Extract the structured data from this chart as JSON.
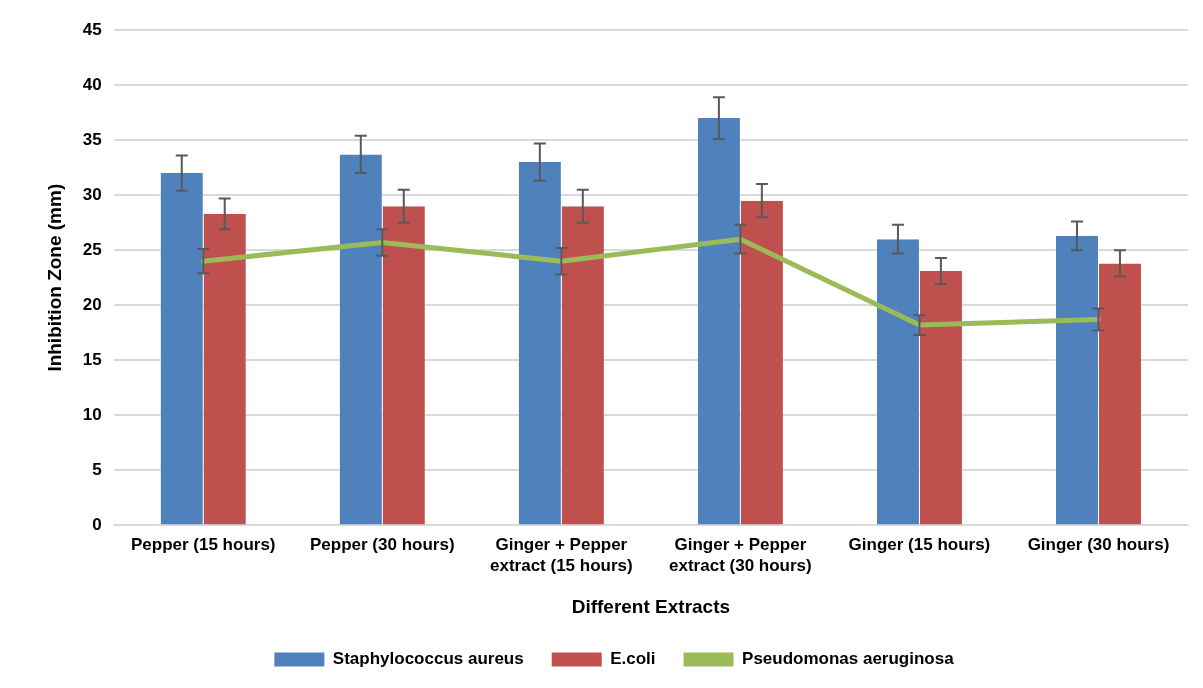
{
  "chart_data": {
    "type": "bar",
    "xlabel": "Different Extracts",
    "ylabel": "Inhibition Zone (mm)",
    "categories": [
      "Pepper (15 hours)",
      "Pepper (30 hours)",
      "Ginger + Pepper extract (15 hours)",
      "Ginger + Pepper extract (30 hours)",
      "Ginger (15 hours)",
      "Ginger (30 hours)"
    ],
    "series": [
      {
        "name": "Staphylococcus aureus",
        "color": "#4f81bd",
        "values": [
          32,
          33.7,
          33,
          37,
          26,
          26.3
        ],
        "errors": [
          1.6,
          1.7,
          1.7,
          1.9,
          1.3,
          1.3
        ]
      },
      {
        "name": "E.coli",
        "color": "#c0504d",
        "values": [
          28.3,
          29,
          29,
          29.5,
          23.1,
          23.8
        ],
        "errors": [
          1.4,
          1.5,
          1.5,
          1.5,
          1.2,
          1.2
        ]
      },
      {
        "name": "Pseudomonas aeruginosa",
        "type": "line",
        "color": "#9bbb59",
        "values": [
          24,
          25.7,
          24,
          26,
          18.2,
          18.7
        ],
        "errors": [
          1.1,
          1.2,
          1.2,
          1.3,
          0.9,
          1
        ]
      }
    ],
    "ylim": [
      0,
      45
    ],
    "yticks": [
      0,
      5,
      10,
      15,
      20,
      25,
      30,
      35,
      40,
      45
    ],
    "grid": "y",
    "legend": "bottom"
  }
}
